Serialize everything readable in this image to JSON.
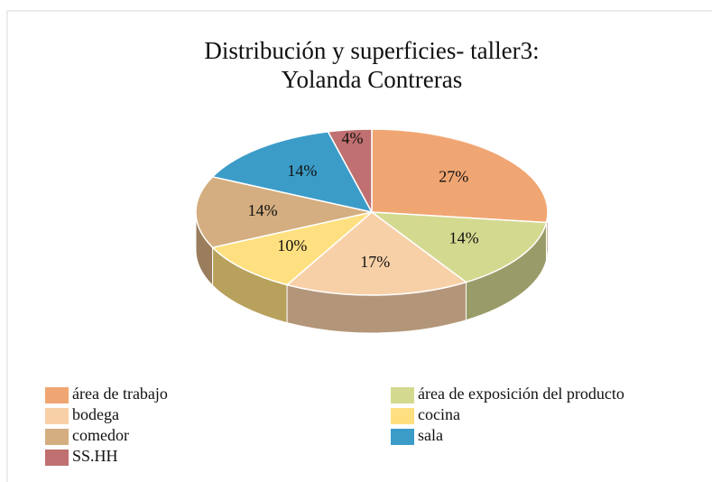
{
  "chart_data": {
    "type": "pie",
    "title": "Distribución y superficies- taller3: Yolanda Contreras",
    "categories": [
      "área de trabajo",
      "área de exposición del producto",
      "bodega",
      "cocina",
      "comedor",
      "sala",
      "SS.HH"
    ],
    "values": [
      27,
      14,
      17,
      10,
      14,
      14,
      4
    ],
    "value_labels": [
      "27%",
      "14%",
      "17%",
      "10%",
      "14%",
      "14%",
      "4%"
    ],
    "colors": [
      "#f0a673",
      "#d4d990",
      "#f8d0a8",
      "#ffe080",
      "#d4ae80",
      "#3c9cc8",
      "#c07070"
    ]
  }
}
